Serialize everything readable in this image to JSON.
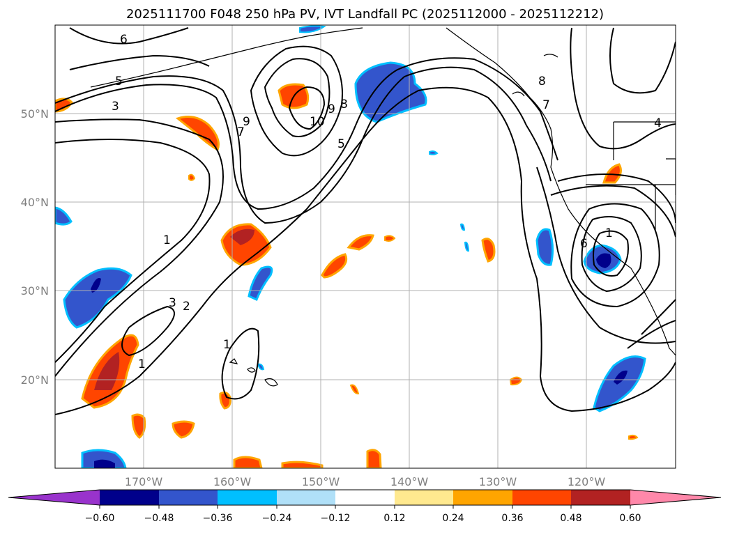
{
  "title": "2025111700 F048 250 hPa PV, IVT Landfall PC (2025112000 - 2025112212)",
  "map": {
    "lon_labels": [
      "170°W",
      "160°W",
      "150°W",
      "140°W",
      "130°W",
      "120°W"
    ],
    "lat_labels": [
      "50°N",
      "40°N",
      "30°N",
      "20°N"
    ],
    "contour_labels": [
      "6",
      "5",
      "3",
      "1",
      "2",
      "3",
      "1",
      "1",
      "7",
      "9",
      "10",
      "9",
      "8",
      "5",
      "8",
      "7",
      "4",
      "1",
      "6"
    ],
    "colors": {
      "contour": "#000000",
      "grid": "#b0b0b0",
      "coast": "#000000"
    }
  },
  "colorbar": {
    "ticks": [
      "−0.60",
      "−0.48",
      "−0.36",
      "−0.24",
      "−0.12",
      "0.12",
      "0.24",
      "0.36",
      "0.48",
      "0.60"
    ],
    "colors": [
      "#9933cc",
      "#00008b",
      "#3355cc",
      "#00bfff",
      "#b0e0f8",
      "#ffffff",
      "#ffe98f",
      "#ffa500",
      "#ff4500",
      "#b22222",
      "#ff88aa"
    ]
  }
}
